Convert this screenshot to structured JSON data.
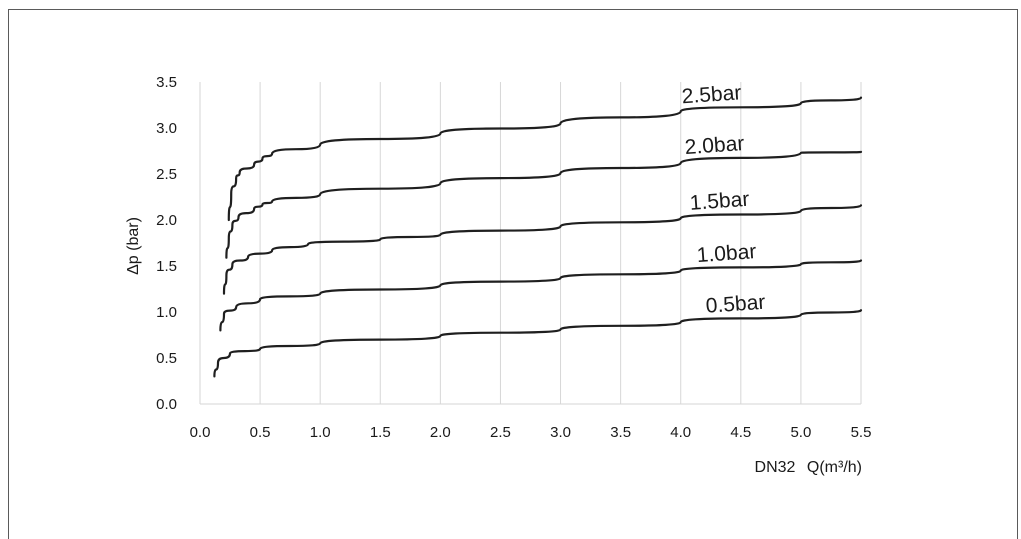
{
  "chart_data": {
    "type": "line",
    "title": "",
    "xlabel_prefix": "DN32",
    "xlabel": "Q(m³/h)",
    "ylabel": "Δp (bar)",
    "xlim": [
      0,
      5.5
    ],
    "ylim": [
      0,
      3.5
    ],
    "x_ticks": [
      "0.0",
      "0.5",
      "1.0",
      "1.5",
      "2.0",
      "2.5",
      "3.0",
      "3.5",
      "4.0",
      "4.5",
      "5.0",
      "5.5"
    ],
    "y_ticks": [
      "0.0",
      "0.5",
      "1.0",
      "1.5",
      "2.0",
      "2.5",
      "3.0",
      "3.5"
    ],
    "grid": "vertical",
    "series": [
      {
        "name": "0.5bar",
        "points": [
          [
            0.12,
            0.3
          ],
          [
            0.15,
            0.45
          ],
          [
            0.25,
            0.55
          ],
          [
            0.5,
            0.6
          ],
          [
            1.0,
            0.66
          ],
          [
            2.0,
            0.74
          ],
          [
            3.0,
            0.81
          ],
          [
            4.0,
            0.89
          ],
          [
            5.0,
            0.97
          ],
          [
            5.5,
            1.02
          ]
        ]
      },
      {
        "name": "1.0bar",
        "points": [
          [
            0.17,
            0.8
          ],
          [
            0.2,
            0.98
          ],
          [
            0.3,
            1.05
          ],
          [
            0.5,
            1.14
          ],
          [
            1.0,
            1.2
          ],
          [
            2.0,
            1.29
          ],
          [
            3.0,
            1.37
          ],
          [
            4.0,
            1.45
          ],
          [
            5.0,
            1.52
          ],
          [
            5.5,
            1.56
          ]
        ]
      },
      {
        "name": "1.5bar",
        "points": [
          [
            0.2,
            1.2
          ],
          [
            0.22,
            1.4
          ],
          [
            0.27,
            1.52
          ],
          [
            0.4,
            1.6
          ],
          [
            0.6,
            1.67
          ],
          [
            0.9,
            1.74
          ],
          [
            1.5,
            1.79
          ],
          [
            2.0,
            1.84
          ],
          [
            3.0,
            1.93
          ],
          [
            4.0,
            2.02
          ],
          [
            5.0,
            2.1
          ],
          [
            5.5,
            2.16
          ]
        ]
      },
      {
        "name": "2.0bar",
        "points": [
          [
            0.22,
            1.59
          ],
          [
            0.24,
            1.8
          ],
          [
            0.27,
            1.95
          ],
          [
            0.32,
            2.03
          ],
          [
            0.45,
            2.12
          ],
          [
            0.52,
            2.17
          ],
          [
            0.6,
            2.2
          ],
          [
            1.0,
            2.28
          ],
          [
            2.0,
            2.4
          ],
          [
            3.0,
            2.51
          ],
          [
            4.0,
            2.62
          ],
          [
            5.0,
            2.73
          ],
          [
            5.5,
            2.74
          ]
        ]
      },
      {
        "name": "2.5bar",
        "points": [
          [
            0.24,
            2.0
          ],
          [
            0.26,
            2.28
          ],
          [
            0.3,
            2.45
          ],
          [
            0.33,
            2.52
          ],
          [
            0.45,
            2.6
          ],
          [
            0.52,
            2.67
          ],
          [
            0.6,
            2.72
          ],
          [
            1.0,
            2.82
          ],
          [
            2.0,
            2.94
          ],
          [
            3.0,
            3.05
          ],
          [
            4.0,
            3.18
          ],
          [
            5.0,
            3.27
          ],
          [
            5.5,
            3.33
          ]
        ]
      }
    ]
  }
}
